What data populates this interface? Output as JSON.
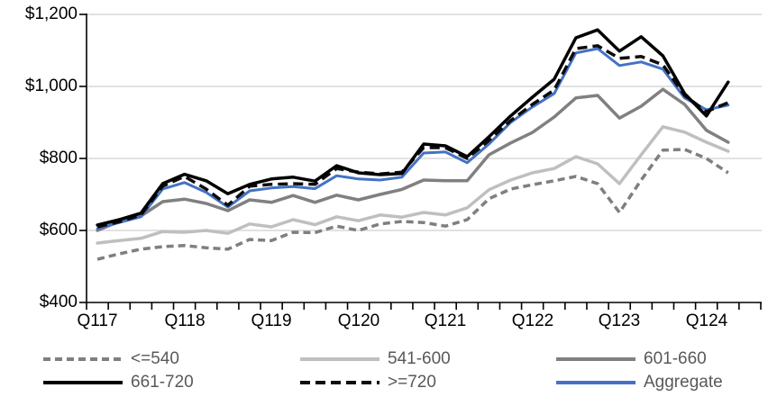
{
  "chart_data": {
    "type": "line",
    "title": "",
    "xlabel": "",
    "ylabel": "",
    "ylim": [
      400,
      1200
    ],
    "y_tick_step": 200,
    "grid": "horizontal",
    "gridline_color": "#d9d9d9",
    "axis_color": "#000000",
    "legend_position": "bottom",
    "y_tick_labels": [
      "$1,200",
      "$1,000",
      "$800",
      "$600",
      "$400"
    ],
    "x_tick_labels": [
      "Q117",
      "Q118",
      "Q119",
      "Q120",
      "Q121",
      "Q122",
      "Q123",
      "Q124"
    ],
    "x": [
      "Q117",
      "Q217",
      "Q317",
      "Q417",
      "Q118",
      "Q218",
      "Q318",
      "Q418",
      "Q119",
      "Q219",
      "Q319",
      "Q419",
      "Q120",
      "Q220",
      "Q320",
      "Q420",
      "Q121",
      "Q221",
      "Q321",
      "Q421",
      "Q122",
      "Q222",
      "Q322",
      "Q422",
      "Q123",
      "Q223",
      "Q323",
      "Q423",
      "Q124",
      "Q224"
    ],
    "series": [
      {
        "name": "<=540",
        "color": "#7f7f7f",
        "line_style": "dashed",
        "values": [
          520,
          535,
          548,
          555,
          558,
          552,
          548,
          575,
          572,
          595,
          594,
          612,
          600,
          618,
          625,
          622,
          612,
          630,
          688,
          715,
          727,
          738,
          750,
          730,
          650,
          740,
          823,
          825,
          800,
          760
        ]
      },
      {
        "name": "541-600",
        "color": "#bfbfbf",
        "line_style": "solid",
        "values": [
          565,
          572,
          578,
          597,
          595,
          600,
          592,
          618,
          610,
          630,
          616,
          638,
          627,
          643,
          637,
          650,
          643,
          663,
          713,
          740,
          760,
          772,
          805,
          785,
          730,
          810,
          888,
          873,
          845,
          820
        ]
      },
      {
        "name": "601-660",
        "color": "#808080",
        "line_style": "solid",
        "values": [
          600,
          625,
          640,
          680,
          687,
          675,
          655,
          685,
          678,
          697,
          678,
          698,
          685,
          700,
          714,
          740,
          738,
          738,
          810,
          843,
          872,
          915,
          968,
          975,
          912,
          945,
          992,
          950,
          878,
          845
        ]
      },
      {
        "name": "661-720",
        "color": "#000000",
        "line_style": "solid",
        "values": [
          615,
          630,
          648,
          730,
          756,
          738,
          702,
          728,
          743,
          748,
          737,
          780,
          760,
          755,
          758,
          840,
          835,
          805,
          860,
          918,
          970,
          1020,
          1135,
          1157,
          1098,
          1138,
          1085,
          980,
          918,
          1012
        ]
      },
      {
        "name": ">=720",
        "color": "#0d0d0d",
        "line_style": "dashed",
        "values": [
          610,
          624,
          643,
          723,
          750,
          715,
          670,
          723,
          728,
          730,
          728,
          772,
          762,
          757,
          762,
          830,
          830,
          800,
          850,
          905,
          950,
          990,
          1105,
          1113,
          1078,
          1083,
          1060,
          975,
          930,
          955
        ]
      },
      {
        "name": "Aggregate",
        "color": "#4472c4",
        "line_style": "solid",
        "values": [
          605,
          622,
          638,
          715,
          733,
          706,
          665,
          710,
          718,
          722,
          716,
          752,
          743,
          740,
          748,
          815,
          818,
          788,
          840,
          900,
          943,
          980,
          1093,
          1105,
          1058,
          1068,
          1048,
          968,
          935,
          948
        ]
      }
    ]
  }
}
